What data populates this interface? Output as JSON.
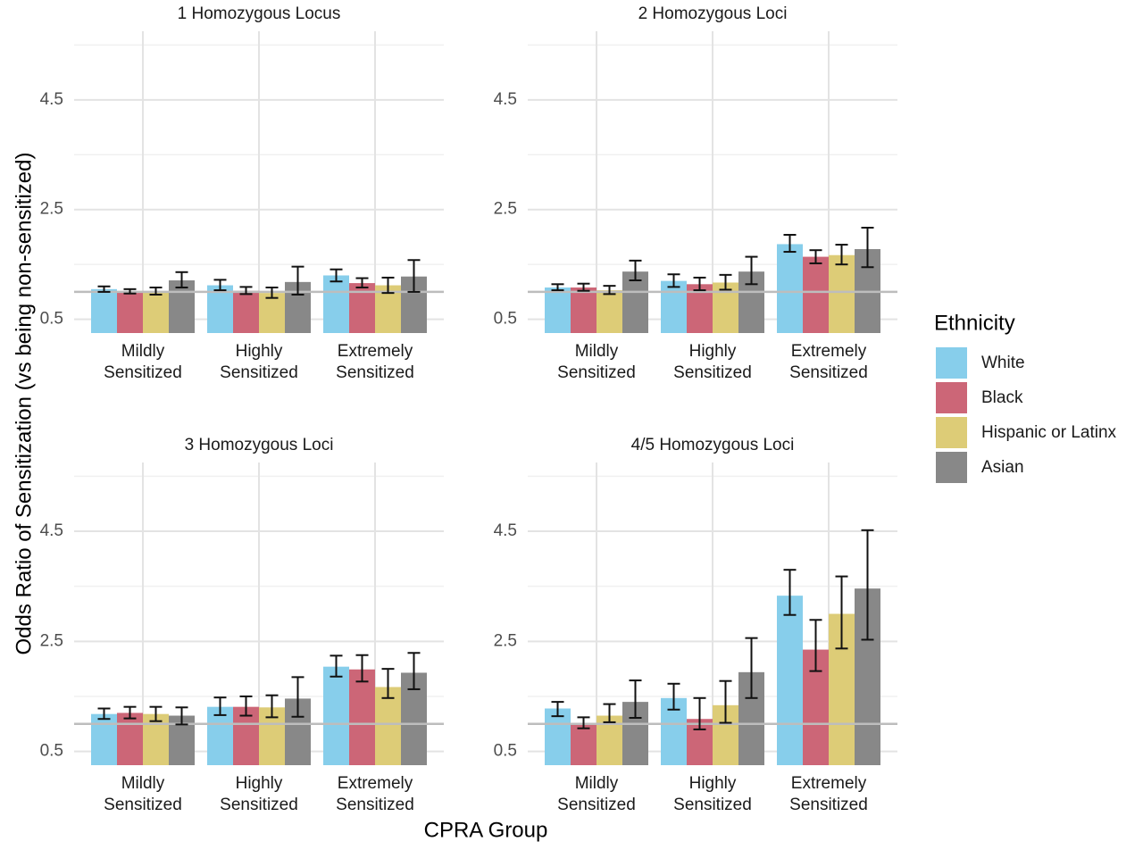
{
  "chart_data": {
    "type": "bar",
    "ylabel": "Odds Ratio of Sensitization (vs being non-sensitized)",
    "xlabel": "CPRA Group",
    "ylim": [
      0.25,
      5.75
    ],
    "yticks": [
      0.5,
      2.5,
      4.5
    ],
    "reference_line": 1.0,
    "grid": true,
    "legend": {
      "title": "Ethnicity",
      "position": "right",
      "entries": [
        {
          "name": "White",
          "color": "#87CEEB"
        },
        {
          "name": "Black",
          "color": "#CC6677"
        },
        {
          "name": "Hispanic or Latinx",
          "color": "#DDCC77"
        },
        {
          "name": "Asian",
          "color": "#888888"
        }
      ]
    },
    "categories": [
      [
        "Mildly",
        "Sensitized"
      ],
      [
        "Highly",
        "Sensitized"
      ],
      [
        "Extremely",
        "Sensitized"
      ]
    ],
    "panels": [
      {
        "title": "1 Homozygous Locus",
        "series": [
          {
            "name": "White",
            "values": [
              1.05,
              1.12,
              1.3
            ],
            "ci_low": [
              1.0,
              1.03,
              1.19
            ],
            "ci_high": [
              1.1,
              1.22,
              1.41
            ]
          },
          {
            "name": "Black",
            "values": [
              1.0,
              1.02,
              1.16
            ],
            "ci_low": [
              0.97,
              0.96,
              1.08
            ],
            "ci_high": [
              1.05,
              1.09,
              1.25
            ]
          },
          {
            "name": "Hispanic or Latinx",
            "values": [
              1.01,
              0.98,
              1.12
            ],
            "ci_low": [
              0.95,
              0.89,
              0.98
            ],
            "ci_high": [
              1.08,
              1.08,
              1.26
            ]
          },
          {
            "name": "Asian",
            "values": [
              1.21,
              1.18,
              1.28
            ],
            "ci_low": [
              1.08,
              0.95,
              1.0
            ],
            "ci_high": [
              1.36,
              1.46,
              1.58
            ]
          }
        ]
      },
      {
        "title": "2 Homozygous Loci",
        "series": [
          {
            "name": "White",
            "values": [
              1.08,
              1.2,
              1.87
            ],
            "ci_low": [
              1.03,
              1.09,
              1.73
            ],
            "ci_high": [
              1.14,
              1.32,
              2.04
            ]
          },
          {
            "name": "Black",
            "values": [
              1.08,
              1.14,
              1.64
            ],
            "ci_low": [
              1.02,
              1.03,
              1.52
            ],
            "ci_high": [
              1.15,
              1.26,
              1.76
            ]
          },
          {
            "name": "Hispanic or Latinx",
            "values": [
              1.03,
              1.17,
              1.67
            ],
            "ci_low": [
              0.96,
              1.04,
              1.5
            ],
            "ci_high": [
              1.11,
              1.31,
              1.86
            ]
          },
          {
            "name": "Asian",
            "values": [
              1.37,
              1.37,
              1.78
            ],
            "ci_low": [
              1.21,
              1.14,
              1.45
            ],
            "ci_high": [
              1.57,
              1.64,
              2.17
            ]
          }
        ]
      },
      {
        "title": "3 Homozygous Loci",
        "series": [
          {
            "name": "White",
            "values": [
              1.18,
              1.31,
              2.04
            ],
            "ci_low": [
              1.09,
              1.16,
              1.86
            ],
            "ci_high": [
              1.28,
              1.48,
              2.24
            ]
          },
          {
            "name": "Black",
            "values": [
              1.2,
              1.31,
              1.99
            ],
            "ci_low": [
              1.1,
              1.15,
              1.77
            ],
            "ci_high": [
              1.31,
              1.5,
              2.25
            ]
          },
          {
            "name": "Hispanic or Latinx",
            "values": [
              1.18,
              1.3,
              1.67
            ],
            "ci_low": [
              1.05,
              1.12,
              1.47
            ],
            "ci_high": [
              1.31,
              1.52,
              2.0
            ]
          },
          {
            "name": "Asian",
            "values": [
              1.15,
              1.46,
              1.93
            ],
            "ci_low": [
              0.99,
              1.13,
              1.63
            ],
            "ci_high": [
              1.3,
              1.85,
              2.29
            ]
          }
        ]
      },
      {
        "title": "4/5 Homozygous Loci",
        "series": [
          {
            "name": "White",
            "values": [
              1.28,
              1.47,
              3.33
            ],
            "ci_low": [
              1.14,
              1.26,
              2.98
            ],
            "ci_high": [
              1.4,
              1.73,
              3.8
            ]
          },
          {
            "name": "Black",
            "values": [
              0.99,
              1.09,
              2.35
            ],
            "ci_low": [
              0.92,
              0.9,
              1.96
            ],
            "ci_high": [
              1.12,
              1.47,
              2.89
            ]
          },
          {
            "name": "Hispanic or Latinx",
            "values": [
              1.15,
              1.34,
              3.0
            ],
            "ci_low": [
              1.03,
              1.02,
              2.37
            ],
            "ci_high": [
              1.36,
              1.78,
              3.68
            ]
          },
          {
            "name": "Asian",
            "values": [
              1.4,
              1.94,
              3.46
            ],
            "ci_low": [
              1.11,
              1.47,
              2.53
            ],
            "ci_high": [
              1.79,
              2.56,
              4.52
            ]
          }
        ]
      }
    ]
  }
}
